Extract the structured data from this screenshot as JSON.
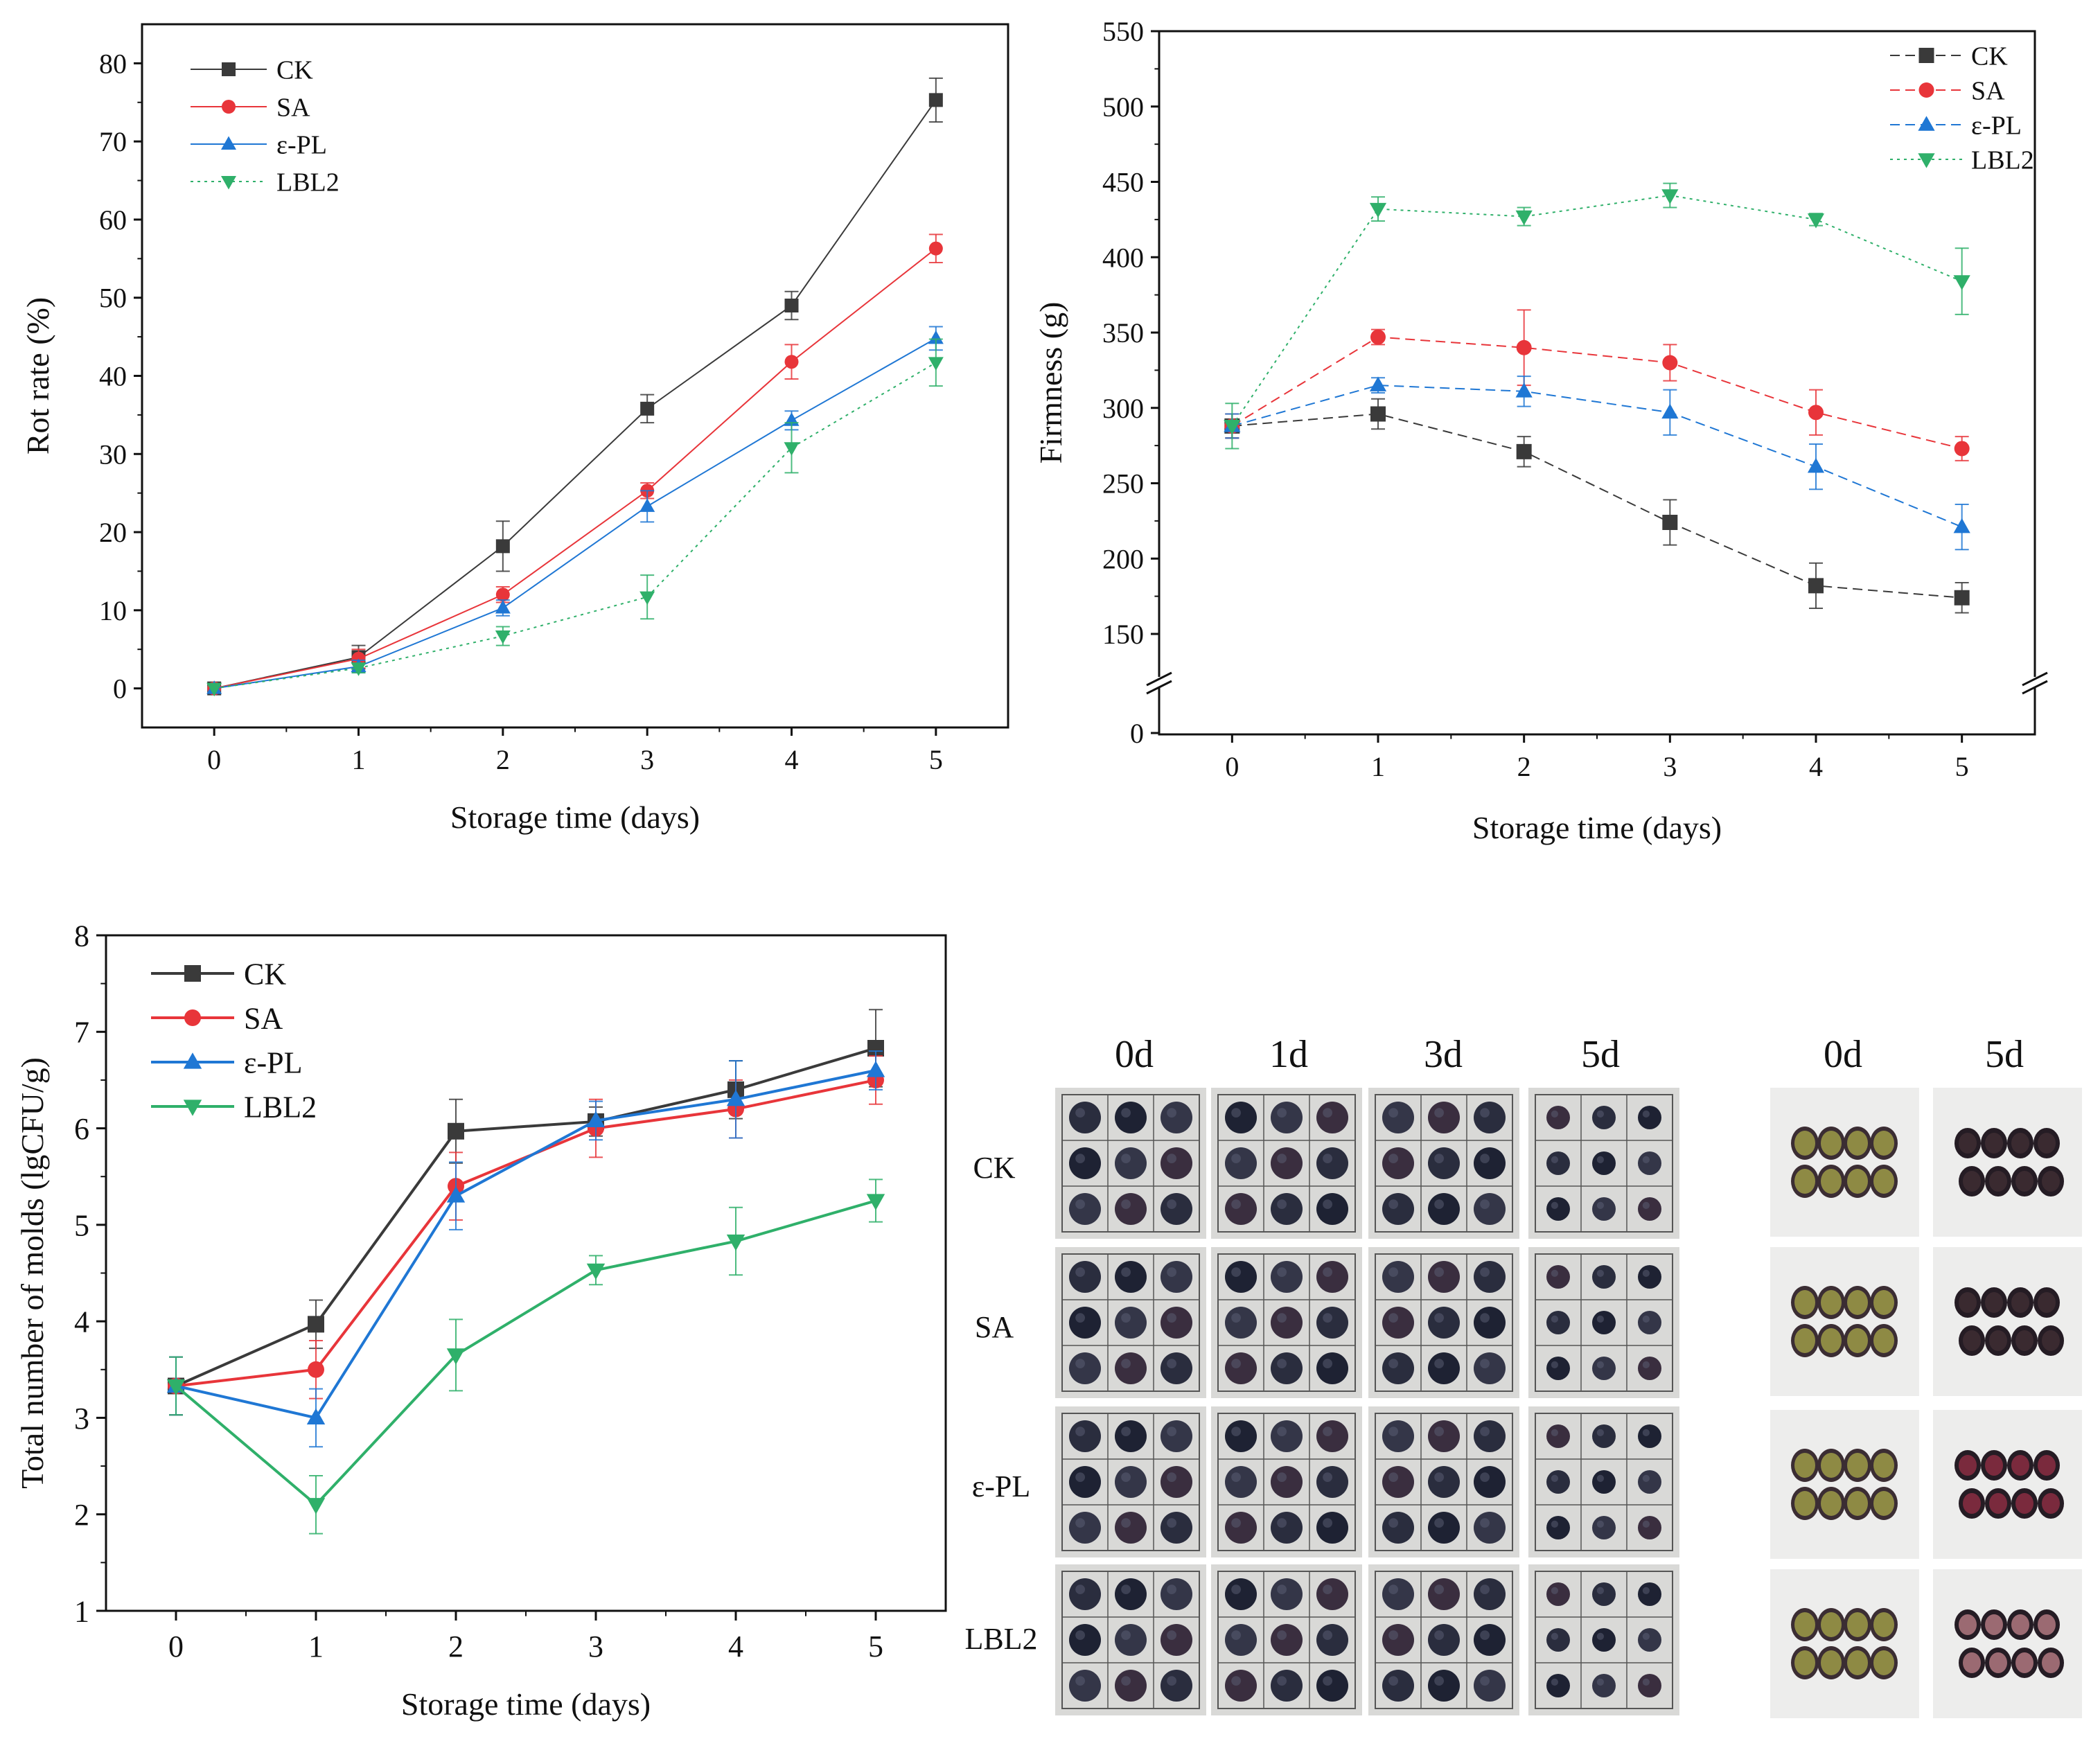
{
  "colors": {
    "CK": "#3a3a3a",
    "SA": "#e8353a",
    "e-PL": "#1f77d4",
    "LBL2": "#2fb06a"
  },
  "chart_data": [
    {
      "id": "rot",
      "type": "line",
      "title": "",
      "xlabel": "Storage time (days)",
      "ylabel": "Rot rate (%)",
      "x": [
        0,
        1,
        2,
        3,
        4,
        5
      ],
      "xlim": [
        -0.5,
        5.5
      ],
      "ylim": [
        -5,
        85
      ],
      "yticks": [
        0,
        10,
        20,
        30,
        40,
        50,
        60,
        70,
        80
      ],
      "legend_position": "top-left",
      "grid": false,
      "series": [
        {
          "name": "CK",
          "key": "CK",
          "marker": "square",
          "dash": "solid",
          "values": [
            0,
            4,
            18.2,
            35.8,
            49,
            75.3
          ],
          "errors": [
            0,
            1.5,
            3.2,
            1.8,
            1.8,
            2.8
          ]
        },
        {
          "name": "SA",
          "key": "SA",
          "marker": "circle",
          "dash": "solid",
          "values": [
            0,
            3.8,
            12,
            25.3,
            41.8,
            56.3
          ],
          "errors": [
            0,
            1.2,
            1.0,
            1.0,
            2.2,
            1.8
          ]
        },
        {
          "name": "ε-PL",
          "key": "e-PL",
          "marker": "triangle-up",
          "dash": "solid",
          "values": [
            0,
            2.8,
            10.3,
            23.3,
            34.3,
            44.8
          ],
          "errors": [
            0,
            0.8,
            1.0,
            2.0,
            1.2,
            1.5
          ]
        },
        {
          "name": "LBL2",
          "key": "LBL2",
          "marker": "triangle-down",
          "dash": "dotted",
          "values": [
            0,
            2.6,
            6.7,
            11.7,
            30.8,
            41.7
          ],
          "errors": [
            0,
            0.6,
            1.2,
            2.8,
            3.2,
            3.0
          ]
        }
      ]
    },
    {
      "id": "firm",
      "type": "line",
      "title": "",
      "xlabel": "Storage time (days)",
      "ylabel": "Firmness (g)",
      "x": [
        0,
        1,
        2,
        3,
        4,
        5
      ],
      "xlim": [
        -0.5,
        5.5
      ],
      "ylim": [
        0,
        550
      ],
      "axis_break": [
        0,
        150
      ],
      "yticks": [
        0,
        150,
        200,
        250,
        300,
        350,
        400,
        450,
        500,
        550
      ],
      "legend_position": "top-right",
      "grid": false,
      "series": [
        {
          "name": "CK",
          "key": "CK",
          "marker": "square",
          "dash": "dashed",
          "values": [
            288,
            296,
            271,
            224,
            182,
            174
          ],
          "errors": [
            8,
            10,
            10,
            15,
            15,
            10
          ]
        },
        {
          "name": "SA",
          "key": "SA",
          "marker": "circle",
          "dash": "dashed",
          "values": [
            288,
            347,
            340,
            330,
            297,
            273
          ],
          "errors": [
            8,
            5,
            25,
            12,
            15,
            8
          ]
        },
        {
          "name": "ε-PL",
          "key": "e-PL",
          "marker": "triangle-up",
          "dash": "dashed",
          "values": [
            288,
            315,
            311,
            297,
            261,
            221
          ],
          "errors": [
            8,
            5,
            10,
            15,
            15,
            15
          ]
        },
        {
          "name": "LBL2",
          "key": "LBL2",
          "marker": "triangle-down",
          "dash": "dotted",
          "values": [
            288,
            432,
            427,
            441,
            425,
            384
          ],
          "errors": [
            15,
            8,
            6,
            8,
            4,
            22
          ]
        }
      ]
    },
    {
      "id": "molds",
      "type": "line",
      "title": "",
      "xlabel": "Storage time (days)",
      "ylabel": "Total number of molds (lgCFU/g)",
      "x": [
        0,
        1,
        2,
        3,
        4,
        5
      ],
      "xlim": [
        -0.5,
        5.5
      ],
      "ylim": [
        1,
        8
      ],
      "yticks": [
        1,
        2,
        3,
        4,
        5,
        6,
        7,
        8
      ],
      "legend_position": "top-left",
      "grid": false,
      "series": [
        {
          "name": "CK",
          "key": "CK",
          "marker": "square",
          "dash": "solid",
          "values": [
            3.33,
            3.97,
            5.97,
            6.07,
            6.4,
            6.83
          ],
          "errors": [
            0.3,
            0.25,
            0.33,
            0.15,
            0.3,
            0.4
          ]
        },
        {
          "name": "SA",
          "key": "SA",
          "marker": "circle",
          "dash": "solid",
          "values": [
            3.33,
            3.5,
            5.4,
            6.0,
            6.2,
            6.5
          ],
          "errors": [
            0.3,
            0.3,
            0.35,
            0.3,
            0.3,
            0.25
          ]
        },
        {
          "name": "ε-PL",
          "key": "e-PL",
          "marker": "triangle-up",
          "dash": "solid",
          "values": [
            3.33,
            3.0,
            5.3,
            6.08,
            6.3,
            6.6
          ],
          "errors": [
            0.3,
            0.3,
            0.35,
            0.2,
            0.4,
            0.2
          ]
        },
        {
          "name": "LBL2",
          "key": "LBL2",
          "marker": "triangle-down",
          "dash": "solid",
          "values": [
            3.33,
            2.1,
            3.65,
            4.53,
            4.83,
            5.25
          ],
          "errors": [
            0.3,
            0.3,
            0.37,
            0.15,
            0.35,
            0.22
          ]
        }
      ]
    }
  ],
  "photos": {
    "panel1": {
      "columns": [
        "0d",
        "1d",
        "3d",
        "5d"
      ],
      "rows": [
        "CK",
        "SA",
        "ε-PL",
        "LBL2"
      ]
    },
    "panel2": {
      "columns": [
        "0d",
        "5d"
      ]
    }
  }
}
